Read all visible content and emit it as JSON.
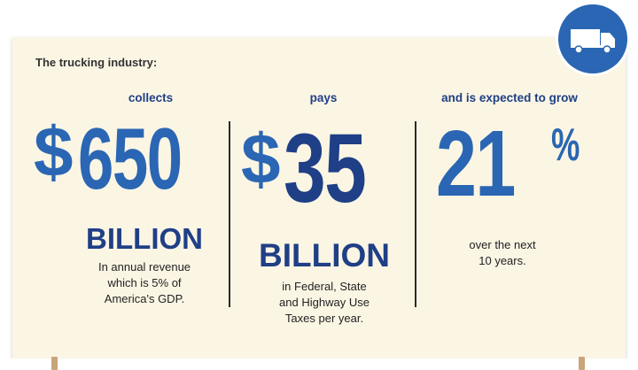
{
  "intro": "The trucking industry:",
  "columns": [
    {
      "heading": "collects",
      "currency": "$",
      "value": "650",
      "unit": "BILLION",
      "description": "In annual revenue\nwhich is 5% of\nAmerica's GDP."
    },
    {
      "heading": "pays",
      "currency": "$",
      "value": "35",
      "unit": "BILLION",
      "description": "in Federal, State\nand Highway Use\nTaxes per year."
    },
    {
      "heading": "and is expected to grow",
      "value": "21",
      "suffix": "%",
      "description": "over the next\n10 years."
    }
  ],
  "colors": {
    "background": "#fbf5e4",
    "light_blue": "#2a66b3",
    "dark_blue": "#1f3f86",
    "text": "#222222"
  },
  "icons": [
    "truck-icon"
  ]
}
